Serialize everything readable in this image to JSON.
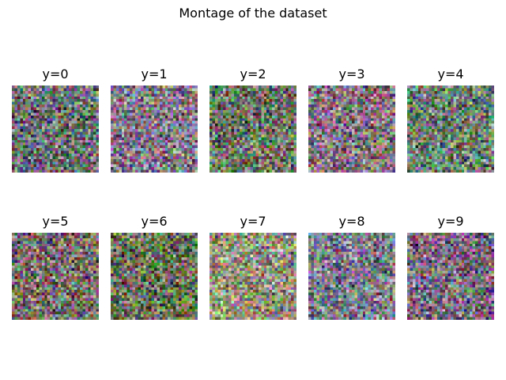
{
  "figure": {
    "title": "Montage of the dataset"
  },
  "panels": [
    {
      "label": "y=0",
      "tint": "#6c6f72"
    },
    {
      "label": "y=1",
      "tint": "#85798a"
    },
    {
      "label": "y=2",
      "tint": "#6d7563"
    },
    {
      "label": "y=3",
      "tint": "#86767f"
    },
    {
      "label": "y=4",
      "tint": "#6f8070"
    },
    {
      "label": "y=5",
      "tint": "#7a6f6a"
    },
    {
      "label": "y=6",
      "tint": "#6b7257"
    },
    {
      "label": "y=7",
      "tint": "#96937f"
    },
    {
      "label": "y=8",
      "tint": "#7d7c8b"
    },
    {
      "label": "y=9",
      "tint": "#7b6a7d"
    }
  ]
}
